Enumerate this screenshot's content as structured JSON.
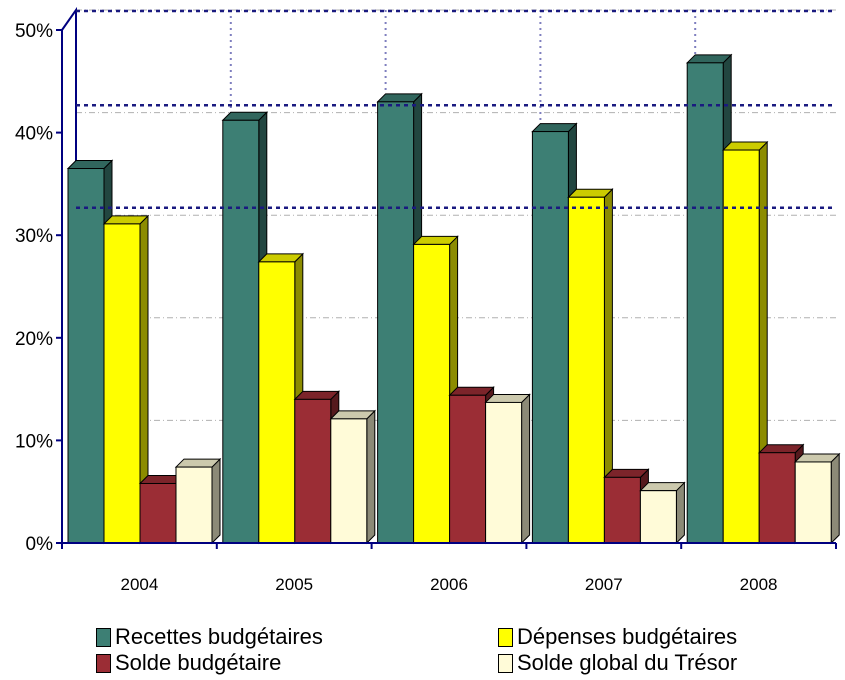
{
  "chart_data": {
    "type": "bar",
    "categories": [
      "2004",
      "2005",
      "2006",
      "2007",
      "2008"
    ],
    "series": [
      {
        "name": "Recettes budgétaires",
        "color": "#3d7f74",
        "values": [
          36.5,
          41.2,
          43.0,
          40.1,
          46.8
        ]
      },
      {
        "name": "Dépenses budgétaires",
        "color": "#ffff00",
        "values": [
          31.1,
          27.4,
          29.1,
          33.7,
          38.3
        ]
      },
      {
        "name": "Solde budgétaire",
        "color": "#9b2d35",
        "values": [
          5.8,
          14.0,
          14.4,
          6.4,
          8.8
        ]
      },
      {
        "name": "Solde global du Trésor",
        "color": "#fffbd8",
        "values": [
          7.4,
          12.1,
          13.7,
          5.1,
          7.9
        ]
      }
    ],
    "y_ticks": [
      "0%",
      "10%",
      "20%",
      "30%",
      "40%",
      "50%"
    ],
    "ylim": [
      0,
      50
    ],
    "title": "",
    "xlabel": "",
    "ylabel": "",
    "legend_position": "bottom",
    "grid": true
  }
}
